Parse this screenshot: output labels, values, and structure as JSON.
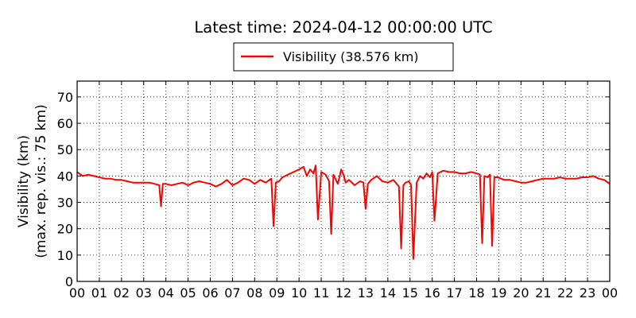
{
  "chart_data": {
    "type": "line",
    "title": "Latest time: 2024-04-12 00:00:00 UTC",
    "ylabel": [
      "Visibility (km)",
      "(max. rep. vis.: 75 km)"
    ],
    "xlabel": "",
    "xlim": [
      0,
      24
    ],
    "ylim": [
      0,
      76
    ],
    "x_tick_labels": [
      "00",
      "01",
      "02",
      "03",
      "04",
      "05",
      "06",
      "07",
      "08",
      "09",
      "10",
      "11",
      "12",
      "13",
      "14",
      "15",
      "16",
      "17",
      "18",
      "19",
      "20",
      "21",
      "22",
      "23",
      "00"
    ],
    "y_ticks": [
      0,
      10,
      20,
      30,
      40,
      50,
      60,
      70
    ],
    "grid": true,
    "legend": {
      "position": "top-center",
      "entries": [
        "Visibility (38.576 km)"
      ]
    },
    "colors": {
      "series": "#ff0000",
      "grid": "#000000",
      "axis": "#000000"
    },
    "series": [
      {
        "name": "Visibility (38.576 km)",
        "x": [
          0.0,
          0.25,
          0.5,
          0.75,
          1.0,
          1.25,
          1.5,
          1.75,
          2.0,
          2.25,
          2.5,
          2.75,
          3.0,
          3.25,
          3.5,
          3.7,
          3.78,
          3.86,
          4.0,
          4.25,
          4.5,
          4.75,
          5.0,
          5.25,
          5.5,
          5.75,
          6.0,
          6.25,
          6.5,
          6.75,
          7.0,
          7.25,
          7.5,
          7.75,
          8.0,
          8.25,
          8.5,
          8.75,
          8.85,
          8.95,
          9.1,
          9.25,
          9.5,
          9.75,
          10.0,
          10.2,
          10.35,
          10.5,
          10.65,
          10.75,
          10.85,
          11.0,
          11.2,
          11.35,
          11.45,
          11.55,
          11.75,
          11.9,
          12.0,
          12.1,
          12.25,
          12.5,
          12.75,
          12.9,
          13.0,
          13.1,
          13.25,
          13.5,
          13.75,
          14.0,
          14.25,
          14.5,
          14.6,
          14.7,
          14.8,
          14.95,
          15.05,
          15.15,
          15.3,
          15.45,
          15.6,
          15.75,
          15.9,
          16.0,
          16.1,
          16.25,
          16.5,
          16.75,
          17.0,
          17.25,
          17.5,
          17.75,
          18.0,
          18.15,
          18.25,
          18.35,
          18.5,
          18.6,
          18.7,
          18.8,
          18.95,
          19.1,
          19.25,
          19.5,
          19.75,
          20.0,
          20.25,
          20.5,
          20.75,
          21.0,
          21.25,
          21.5,
          21.75,
          22.0,
          22.25,
          22.5,
          22.75,
          23.0,
          23.25,
          23.5,
          23.75,
          24.0
        ],
        "values": [
          41.5,
          40.0,
          40.5,
          40.0,
          39.5,
          39.0,
          39.0,
          38.5,
          38.5,
          38.0,
          37.5,
          37.5,
          37.5,
          37.5,
          37.0,
          36.5,
          28.5,
          37.0,
          37.0,
          36.5,
          37.0,
          37.5,
          36.5,
          37.5,
          38.0,
          37.5,
          37.0,
          36.0,
          37.0,
          38.5,
          36.5,
          37.5,
          39.0,
          38.5,
          37.0,
          38.5,
          37.5,
          39.0,
          21.0,
          37.5,
          38.0,
          39.5,
          40.5,
          41.5,
          42.5,
          43.5,
          40.0,
          42.5,
          41.0,
          44.0,
          23.5,
          41.5,
          40.5,
          38.0,
          18.0,
          40.5,
          37.0,
          42.5,
          40.5,
          37.5,
          38.5,
          36.5,
          38.0,
          37.5,
          27.5,
          37.0,
          38.5,
          40.0,
          38.0,
          37.5,
          38.5,
          36.0,
          12.5,
          36.5,
          37.5,
          38.0,
          36.5,
          8.5,
          37.5,
          40.0,
          39.0,
          41.0,
          39.5,
          41.5,
          23.0,
          41.0,
          42.0,
          41.5,
          41.5,
          41.0,
          41.0,
          41.5,
          41.0,
          40.5,
          14.5,
          40.0,
          39.5,
          40.5,
          13.5,
          39.5,
          39.5,
          39.0,
          38.5,
          38.5,
          38.0,
          37.5,
          37.5,
          38.0,
          38.5,
          39.0,
          39.0,
          39.0,
          39.5,
          39.0,
          39.0,
          39.0,
          39.5,
          39.5,
          40.0,
          39.0,
          38.5,
          37.0
        ]
      }
    ]
  }
}
